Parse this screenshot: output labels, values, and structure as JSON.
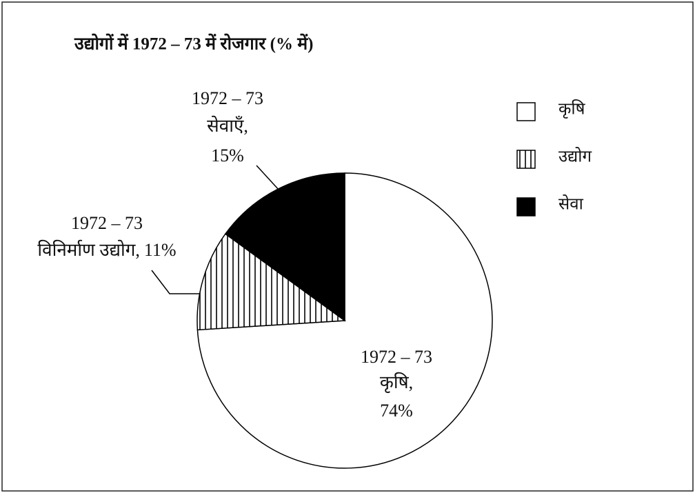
{
  "chart_data": {
    "type": "pie",
    "title": "उद्योगों में 1972 – 73 में रोजगार (% में)",
    "categories": [
      "कृषि",
      "उद्योग",
      "सेवा"
    ],
    "values": [
      74,
      11,
      15
    ],
    "value_labels": [
      "74%",
      "11%",
      "15%"
    ],
    "slice_periods": [
      "1972 – 73",
      "1972 – 73",
      "1972 – 73"
    ],
    "slice_names": [
      "कृषि,",
      "विनिर्माण उद्योग,",
      "सेवाएँ,"
    ],
    "colors": [
      "#ffffff",
      "#ffffff",
      "#000000"
    ],
    "hatch": [
      false,
      true,
      false
    ],
    "legend": "top-right"
  }
}
